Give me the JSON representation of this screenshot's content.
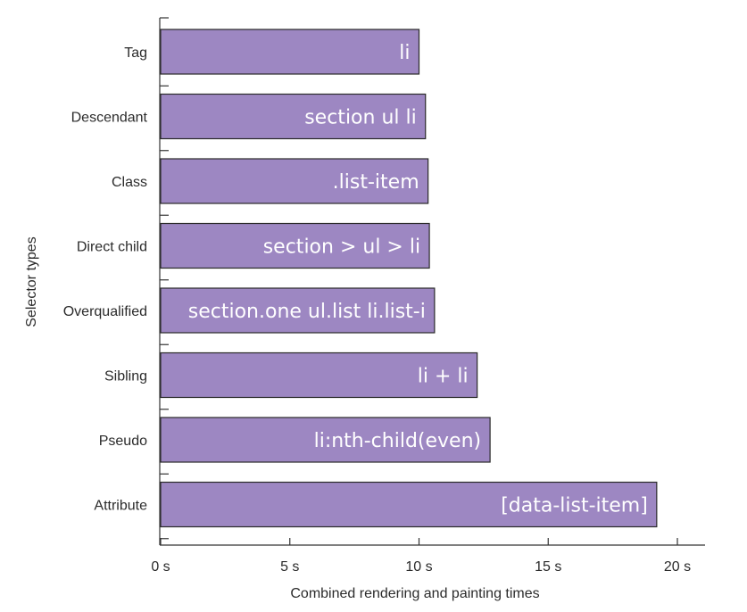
{
  "chart_data": {
    "type": "bar",
    "orientation": "horizontal",
    "categories": [
      "Tag",
      "Descendant",
      "Class",
      "Direct child",
      "Overqualified",
      "Sibling",
      "Pseudo",
      "Attribute"
    ],
    "values": [
      10.0,
      10.25,
      10.35,
      10.4,
      10.6,
      12.25,
      12.75,
      19.2
    ],
    "bar_labels": [
      "li",
      "section ul li",
      ".list-item",
      "section > ul > li",
      "section.one ul.list li.list-i",
      "li + li",
      "li:nth-child(even)",
      "[data-list-item]"
    ],
    "xlabel": "Combined rendering and painting times",
    "ylabel": "Selector types",
    "xlim": [
      0,
      21
    ],
    "xticks": [
      0,
      5,
      10,
      15,
      20
    ],
    "xtick_labels": [
      "0 s",
      "5 s",
      "10 s",
      "15 s",
      "20 s"
    ],
    "bar_color": "#9d87c2",
    "grid": false,
    "legend": "none"
  }
}
